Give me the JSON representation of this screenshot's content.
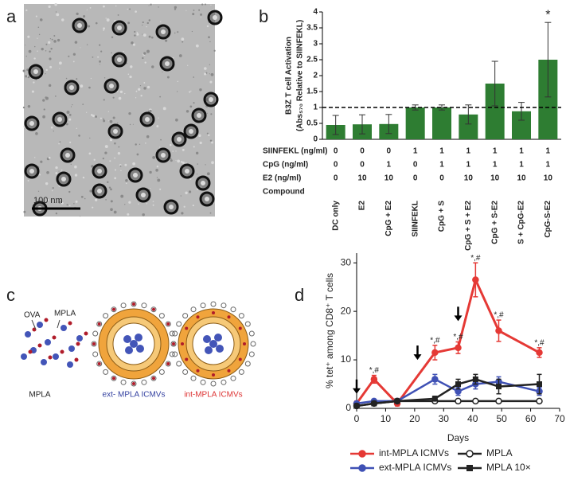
{
  "panel_labels": [
    "a",
    "b",
    "c",
    "d"
  ],
  "micrograph": {
    "scale_bar": "100 nm"
  },
  "diagram": {
    "labels": [
      "OVA",
      "MPLA",
      "MPLA",
      "ext- MPLA ICMVs",
      "int-MPLA ICMVs"
    ]
  },
  "chart_data": [
    {
      "type": "bar",
      "ylabel": "B3Z T cell Activation",
      "ylabel2": "(Abs₅₇₀ Relative to SIINFEKL)",
      "categories": [
        "DC only",
        "E2",
        "CpG + E2",
        "SIINFEKL",
        "CpG + S",
        "CpG + S + E2",
        "CpG + S-E2",
        "S + CpG-E2",
        "CpG-S-E2"
      ],
      "values": [
        0.45,
        0.47,
        0.48,
        1.0,
        1.0,
        0.78,
        1.75,
        0.88,
        2.5
      ],
      "errors": [
        0.3,
        0.3,
        0.3,
        0.08,
        0.08,
        0.3,
        0.7,
        0.28,
        1.17
      ],
      "color": "#2e7d32",
      "ylim": [
        0,
        4
      ],
      "yticks": [
        0,
        0.5,
        1,
        1.5,
        2,
        2.5,
        3,
        3.5,
        4
      ],
      "reference_line": 1,
      "annotations": [
        {
          "text": "*",
          "index": 8
        }
      ],
      "table": {
        "rows": [
          {
            "label": "SIINFEKL (ng/ml)",
            "values": [
              0,
              0,
              0,
              1,
              1,
              1,
              1,
              1,
              1
            ]
          },
          {
            "label": "CpG (ng/ml)",
            "values": [
              0,
              0,
              1,
              0,
              1,
              1,
              1,
              1,
              1
            ]
          },
          {
            "label": "E2 (ng/ml)",
            "values": [
              0,
              10,
              10,
              0,
              0,
              10,
              10,
              10,
              10
            ]
          }
        ],
        "compound_label": "Compound"
      }
    },
    {
      "type": "line",
      "xlabel": "Days",
      "ylabel": "% tet⁺ among CD8⁺ T cells",
      "x": [
        0,
        6,
        14,
        27,
        35,
        41,
        49,
        63
      ],
      "xlim": [
        0,
        70
      ],
      "xticks": [
        0,
        10,
        20,
        30,
        40,
        50,
        60,
        70
      ],
      "ylim": [
        0,
        32
      ],
      "yticks": [
        0,
        10,
        20,
        30
      ],
      "arrow_days": [
        0,
        21,
        35
      ],
      "series": [
        {
          "name": "int-MPLA ICMVs",
          "color": "#e53935",
          "marker": "filled-circle",
          "values": [
            1,
            6,
            1,
            11.5,
            12.5,
            26.5,
            16,
            11.5
          ],
          "errors": [
            0.5,
            0.8,
            0.5,
            1.5,
            1.2,
            3.5,
            2.2,
            1
          ]
        },
        {
          "name": "ext-MPLA ICMVs",
          "color": "#3f51b5",
          "marker": "filled-circle",
          "values": [
            1,
            1.5,
            1.5,
            6,
            3.5,
            5,
            5.5,
            3.5
          ],
          "errors": [
            0.3,
            0.3,
            0.3,
            1,
            0.8,
            1,
            1,
            0.8
          ]
        },
        {
          "name": "MPLA",
          "color": "#222222",
          "marker": "open-circle",
          "values": [
            0.5,
            1,
            1.5,
            1.5,
            1.5,
            1.5,
            1.5,
            1.5
          ],
          "errors": [
            0.2,
            0.2,
            0.2,
            0.2,
            0.2,
            0.2,
            0.2,
            0.2
          ]
        },
        {
          "name": "MPLA 10×",
          "color": "#222222",
          "marker": "square",
          "values": [
            0.5,
            1,
            1.5,
            2,
            5,
            6,
            4.5,
            5
          ],
          "errors": [
            0.2,
            0.3,
            0.3,
            0.5,
            1,
            1,
            1.5,
            2
          ]
        }
      ],
      "annotations": [
        {
          "text": "*,#",
          "index": 1
        },
        {
          "text": "*,#",
          "index": 3
        },
        {
          "text": "*,#",
          "index": 4
        },
        {
          "text": "*,#",
          "index": 5
        },
        {
          "text": "*,#",
          "index": 6
        },
        {
          "text": "*,#",
          "index": 7
        }
      ]
    }
  ]
}
